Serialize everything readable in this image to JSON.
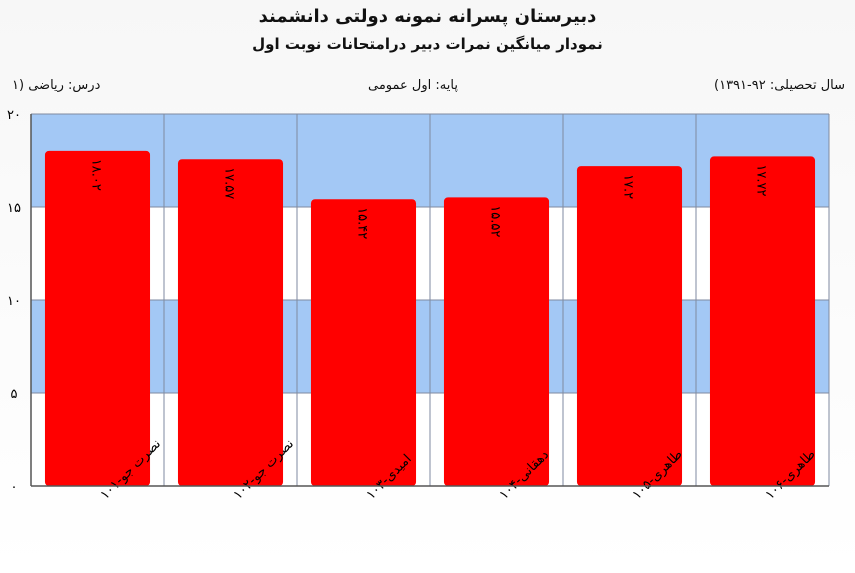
{
  "header": {
    "title": "دبیرستان پسرانه نمونه دولتی دانشمند",
    "subtitle": "نمودار میانگین نمرات دبیر درامتحانات نوبت اول",
    "year": "سال تحصیلی: ۹۲-۱۳۹۱)",
    "grade": "پایه: اول عمومی",
    "subject": "درس: ریاضی (۱"
  },
  "colors": {
    "bar": "#ff0000",
    "band": "#a3c8f5",
    "plot_bg": "#ffffff",
    "gridline": "#7f8aa0"
  },
  "chart_data": {
    "type": "bar",
    "title": "نمودار میانگین نمرات دبیر درامتحانات نوبت اول",
    "categories": [
      "نصرت جو-۱۰۱",
      "نصرت جو-۱۰۲",
      "امیدی-۱۰۳",
      "دهقانی-۱۰۴",
      "طاهری-۱۰۵",
      "طاهری-۱۰۶"
    ],
    "values": [
      18.02,
      17.57,
      15.42,
      15.52,
      17.2,
      17.72
    ],
    "data_labels": [
      "۱۸.۰۲",
      "۱۷.۵۷",
      "۱۵.۴۲",
      "۱۵.۵۲",
      "۱۷.۲",
      "۱۷.۷۲"
    ],
    "ylim": [
      0,
      20
    ],
    "yticks": [
      {
        "value": 0,
        "label": "۰"
      },
      {
        "value": 5,
        "label": "۵"
      },
      {
        "value": 10,
        "label": "۱۰"
      },
      {
        "value": 15,
        "label": "۱۵"
      },
      {
        "value": 20,
        "label": "۲۰"
      }
    ],
    "grid": true,
    "legend": "none"
  }
}
